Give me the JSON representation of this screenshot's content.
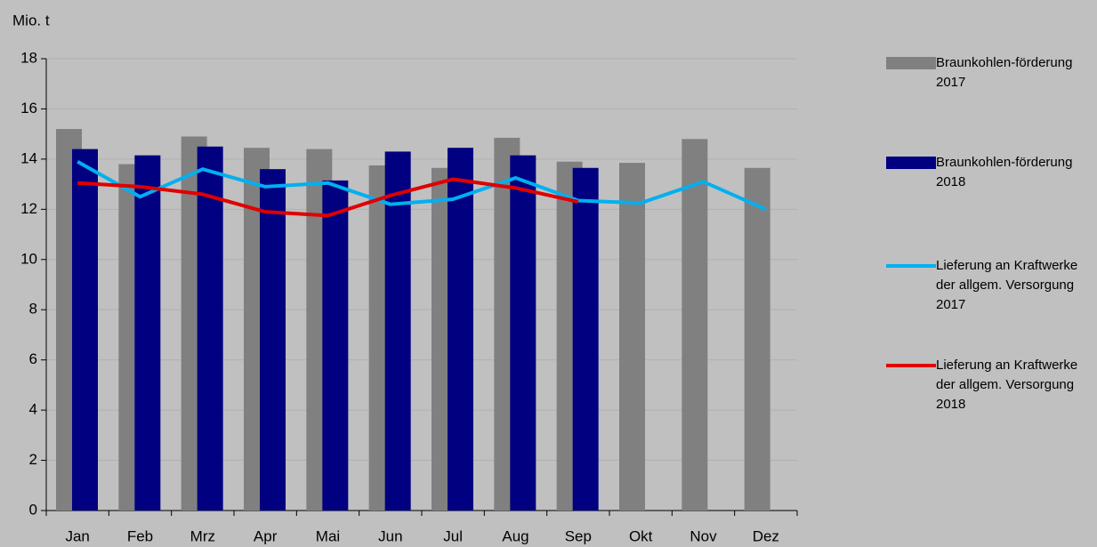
{
  "chart_data": {
    "type": "bar_line",
    "title": "Mio. t",
    "categories": [
      "Jan",
      "Feb",
      "Mrz",
      "Apr",
      "Mai",
      "Jun",
      "Jul",
      "Aug",
      "Sep",
      "Okt",
      "Nov",
      "Dez"
    ],
    "series": [
      {
        "name": "Braunkohlen-förderung 2017",
        "type": "bar",
        "color": "#808080",
        "values": [
          15.2,
          13.8,
          14.9,
          14.45,
          14.4,
          13.75,
          13.65,
          14.85,
          13.9,
          13.85,
          14.8,
          13.65
        ]
      },
      {
        "name": "Braunkohlen-förderung 2018",
        "type": "bar",
        "color": "#000080",
        "values": [
          14.4,
          14.15,
          14.5,
          13.6,
          13.15,
          14.3,
          14.45,
          14.15,
          13.65,
          null,
          null,
          null
        ]
      },
      {
        "name": "Lieferung an Kraftwerke der allgem. Versorgung 2017",
        "type": "line",
        "color": "#00b0f0",
        "values": [
          13.9,
          12.5,
          13.6,
          12.9,
          13.05,
          12.2,
          12.4,
          13.25,
          12.35,
          12.25,
          13.1,
          12.0
        ]
      },
      {
        "name": "Lieferung an Kraftwerke der allgem. Versorgung 2018",
        "type": "line",
        "color": "#e00000",
        "values": [
          13.05,
          12.9,
          12.6,
          11.9,
          11.75,
          12.55,
          13.2,
          12.85,
          12.3,
          null,
          null,
          null
        ]
      }
    ],
    "ylim": [
      0,
      18
    ],
    "yticks": [
      0,
      2,
      4,
      6,
      8,
      10,
      12,
      14,
      16,
      18
    ],
    "grid": true
  }
}
